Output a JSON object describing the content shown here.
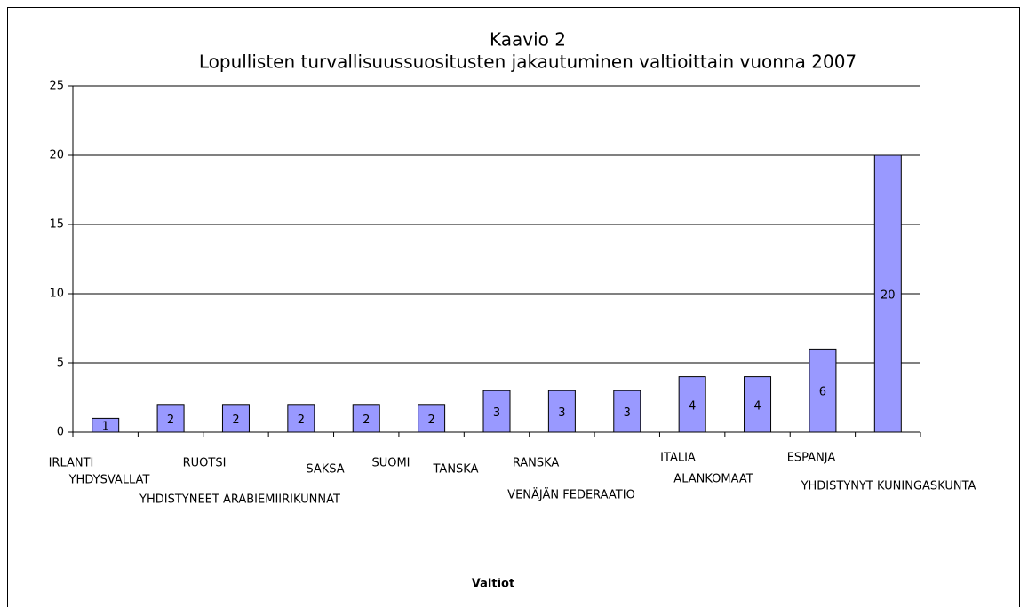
{
  "chart_data": {
    "type": "bar",
    "title": "Kaavio 2",
    "subtitle": "Lopullisten turvallisuussuositusten jakautuminen valtioittain vuonna 2007",
    "x_label": "Valtiot",
    "categories": [
      "IRLANTI",
      "YHDYSVALLAT",
      "RUOTSI",
      "YHDISTYNEET ARABIEMIIRIKUNNAT",
      "SAKSA",
      "SUOMI",
      "TANSKA",
      "RANSKA",
      "VENÄJÄN FEDERAATIO",
      "ITALIA",
      "ALANKOMAAT",
      "ESPANJA",
      "YHDISTYNYT KUNINGASKUNTA"
    ],
    "values": [
      1,
      2,
      2,
      2,
      2,
      2,
      3,
      3,
      3,
      4,
      4,
      6,
      20
    ],
    "color": "#9999ff",
    "data_labels": true,
    "ylim": [
      0,
      25
    ],
    "yticks": [
      0,
      5,
      10,
      15,
      20,
      25
    ],
    "grid": true
  }
}
